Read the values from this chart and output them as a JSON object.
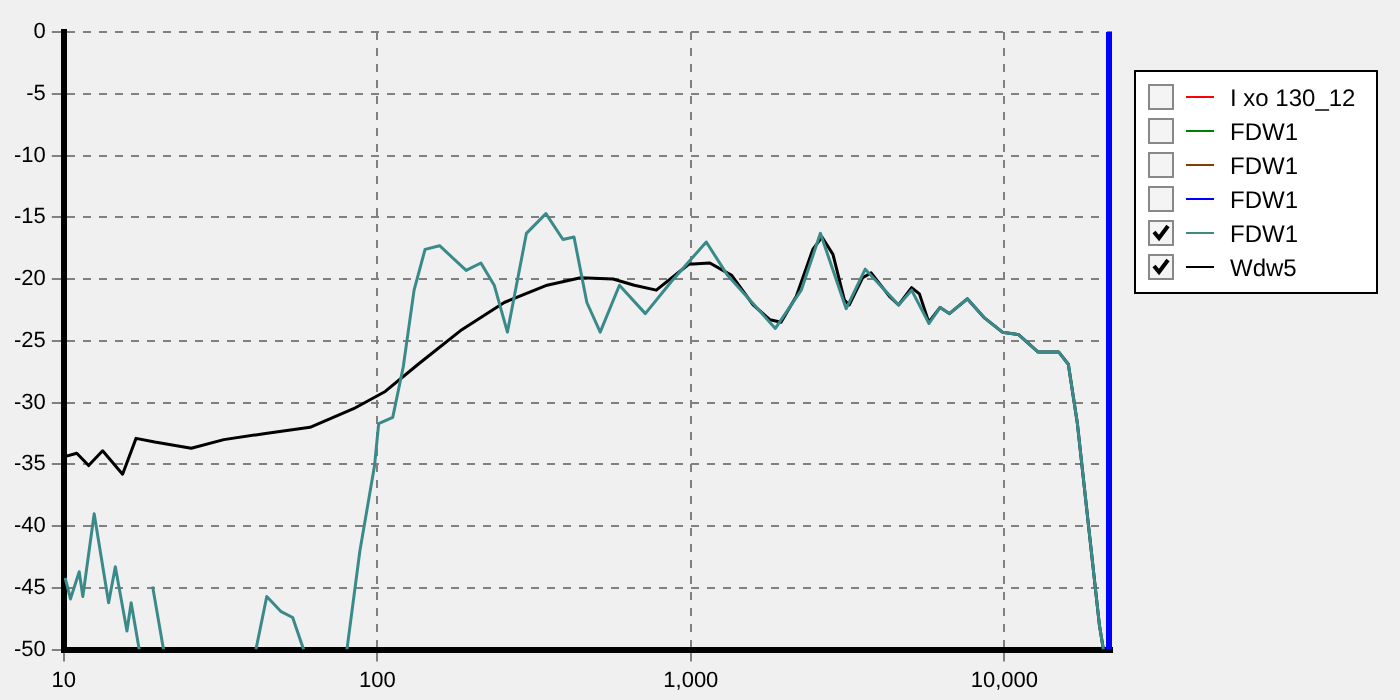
{
  "chart_data": {
    "type": "line",
    "log": "x",
    "xlim": [
      10,
      22050
    ],
    "ylim": [
      -50,
      0
    ],
    "xticks": [
      10,
      100,
      {
        "value": 1000,
        "label": "1,000"
      },
      {
        "value": 10000,
        "label": "10,000"
      }
    ],
    "yticks": [
      -50,
      -45,
      -40,
      -35,
      -30,
      -25,
      -20,
      -15,
      -10,
      -5,
      0
    ],
    "grid": true,
    "legend": "right",
    "marker": "none",
    "line_style": "solid",
    "ref_lines": [
      {
        "axis": "x",
        "value": 22050,
        "color": "#0000ff"
      }
    ],
    "series": [
      {
        "name": "I xo 130_12",
        "color": "#ff0000"
      },
      {
        "name": "FDW1",
        "color": "#008000"
      },
      {
        "name": "FDW1",
        "color": "#804000"
      },
      {
        "name": "FDW1",
        "color": "#0000ff"
      },
      {
        "name": "FDW1",
        "color": "#3a8a8a",
        "x": [
          10.1,
          10.5,
          11.2,
          11.5,
          12.5,
          13.9,
          14.6,
          15.9,
          16.4,
          17.4,
          18.3,
          19.2,
          20.8,
          30,
          41,
          44.4,
          49.2,
          53.7,
          58.2,
          70,
          80,
          88,
          98,
          101,
          112,
          121,
          131,
          142,
          158,
          192,
          214,
          236,
          260,
          299,
          345,
          391,
          424,
          466,
          514,
          592,
          716,
          867,
          1120,
          1310,
          1860,
          2250,
          2590,
          3130,
          3600,
          4600,
          5060,
          5750,
          6240,
          6680,
          7620,
          8600,
          9860,
          11100,
          12800,
          14900,
          16000,
          17100,
          18600,
          20100,
          20700
        ],
        "values": [
          -44.2,
          -45.9,
          -43.7,
          -45.7,
          -39.0,
          -46.2,
          -43.3,
          -48.5,
          -46.2,
          -50,
          null,
          -44.9,
          -50,
          null,
          -50,
          -45.7,
          -46.9,
          -47.4,
          -50,
          null,
          -50,
          -42,
          -35.1,
          -31.7,
          -31.2,
          -27.1,
          -20.9,
          -17.6,
          -17.3,
          -19.3,
          -18.7,
          -20.5,
          -24.3,
          -16.3,
          -14.7,
          -16.8,
          -16.6,
          -21.9,
          -24.3,
          -20.5,
          -22.8,
          -20.2,
          -17.0,
          -19.7,
          -24.0,
          -20.9,
          -16.3,
          -22.4,
          -19.2,
          -22.1,
          -20.9,
          -23.6,
          -22.3,
          -22.8,
          -21.6,
          -23.1,
          -24.3,
          -24.5,
          -25.9,
          -25.9,
          -26.9,
          -31.7,
          -40.2,
          -48,
          -50
        ]
      },
      {
        "name": "Wdw5",
        "color": "#000000",
        "x": [
          10,
          11,
          12,
          13.3,
          15.4,
          17,
          19.5,
          25.5,
          32.4,
          44,
          61,
          84,
          106,
          135,
          186,
          254,
          348,
          445,
          565,
          660,
          776,
          985,
          1150,
          1350,
          1580,
          1790,
          1940,
          2170,
          2450,
          2620,
          2840,
          3090,
          3200,
          3530,
          3760,
          4300,
          4600,
          5060,
          5360,
          5740,
          6240,
          6680,
          7620,
          8600,
          9860,
          11100,
          12800,
          14900,
          16000,
          17100,
          18600,
          20100,
          20700
        ],
        "values": [
          -34.4,
          -34.1,
          -35.1,
          -33.9,
          -35.8,
          -32.9,
          -33.2,
          -33.7,
          -33.0,
          -32.5,
          -32.0,
          -30.5,
          -29.1,
          -26.9,
          -24.1,
          -21.9,
          -20.5,
          -19.9,
          -20.0,
          -20.5,
          -20.9,
          -18.8,
          -18.7,
          -19.7,
          -22.1,
          -23.3,
          -23.5,
          -21.4,
          -17.6,
          -16.6,
          -18.0,
          -21.7,
          -22.1,
          -19.9,
          -19.5,
          -21.4,
          -22.1,
          -20.7,
          -21.2,
          -23.5,
          -22.3,
          -22.8,
          -21.6,
          -23.1,
          -24.3,
          -24.5,
          -25.9,
          -25.9,
          -26.9,
          -31.7,
          -40.2,
          -48,
          -50
        ]
      }
    ]
  }
}
